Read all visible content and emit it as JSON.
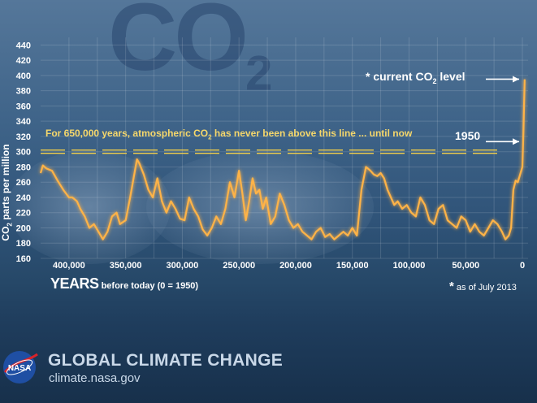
{
  "background_text": {
    "co2": "CO",
    "co2_sub": "2"
  },
  "chart_data": {
    "type": "line",
    "ylabel": {
      "text": "CO",
      "sub": "2",
      "rest": " parts per million"
    },
    "xlabel": {
      "main": "YEARS",
      "detail": " before today (0 = 1950)"
    },
    "xlim": [
      425000,
      -5000
    ],
    "ylim": [
      160,
      450
    ],
    "y_ticks": [
      160,
      180,
      200,
      220,
      240,
      260,
      280,
      300,
      320,
      340,
      360,
      380,
      400,
      420,
      440
    ],
    "x_ticks": [
      400000,
      350000,
      300000,
      250000,
      200000,
      150000,
      100000,
      50000,
      0
    ],
    "x_tick_labels": [
      "400,000",
      "350,000",
      "300,000",
      "250,000",
      "200,000",
      "150,000",
      "100,000",
      "50,000",
      "0"
    ],
    "grid": true,
    "reference_line": {
      "y": 300,
      "label_main": "For 650,000 years, atmospheric CO",
      "label_sub": "2",
      "label_rest": " has never been above this line ... until now"
    },
    "annotations": {
      "current": {
        "text": "* current CO",
        "sub": "2",
        "rest": " level",
        "x": 0,
        "y": 393
      },
      "year1950": {
        "text": "1950",
        "x": 0,
        "y": 310
      }
    },
    "footnote": {
      "star": "*",
      "text": " as of July 2013"
    },
    "series": [
      {
        "x": [
          425000,
          423000,
          420000,
          415000,
          410000,
          405000,
          400000,
          397000,
          393000,
          390000,
          386000,
          382000,
          378000,
          374000,
          370000,
          366000,
          362000,
          358000,
          355000,
          350000,
          346000,
          343000,
          340000,
          338000,
          334000,
          330000,
          326000,
          322000,
          318000,
          314000,
          310000,
          306000,
          302000,
          298000,
          294000,
          290000,
          286000,
          282000,
          278000,
          274000,
          270000,
          266000,
          262000,
          258000,
          254000,
          250000,
          247000,
          244000,
          241000,
          238000,
          235000,
          232000,
          229000,
          226000,
          222000,
          218000,
          214000,
          210000,
          206000,
          202000,
          198000,
          194000,
          190000,
          186000,
          182000,
          178000,
          174000,
          170000,
          166000,
          162000,
          158000,
          154000,
          150000,
          146000,
          142000,
          138000,
          134000,
          131000,
          128000,
          125000,
          122000,
          119000,
          116000,
          113000,
          110000,
          106000,
          102000,
          98000,
          94000,
          90000,
          86000,
          82000,
          78000,
          74000,
          70000,
          66000,
          62000,
          58000,
          54000,
          50000,
          46000,
          42000,
          38000,
          34000,
          30000,
          26000,
          22000,
          18000,
          15000,
          12000,
          10000,
          8000,
          6000,
          4000,
          2000,
          0,
          -1000,
          -2000
        ],
        "y": [
          272,
          282,
          278,
          275,
          262,
          250,
          240,
          240,
          235,
          225,
          215,
          200,
          205,
          195,
          185,
          195,
          215,
          220,
          205,
          210,
          240,
          265,
          290,
          285,
          270,
          250,
          240,
          265,
          235,
          220,
          235,
          225,
          212,
          210,
          240,
          225,
          215,
          198,
          190,
          200,
          215,
          205,
          225,
          260,
          240,
          275,
          245,
          210,
          235,
          265,
          245,
          250,
          225,
          240,
          205,
          215,
          245,
          230,
          210,
          200,
          205,
          195,
          190,
          185,
          195,
          200,
          188,
          192,
          185,
          190,
          195,
          190,
          200,
          190,
          250,
          280,
          275,
          270,
          268,
          272,
          265,
          250,
          240,
          230,
          235,
          225,
          230,
          220,
          215,
          240,
          230,
          210,
          205,
          225,
          230,
          210,
          205,
          200,
          215,
          210,
          195,
          205,
          195,
          190,
          200,
          210,
          205,
          195,
          185,
          190,
          200,
          250,
          262,
          260,
          270,
          280,
          330,
          395
        ]
      }
    ]
  }
}
